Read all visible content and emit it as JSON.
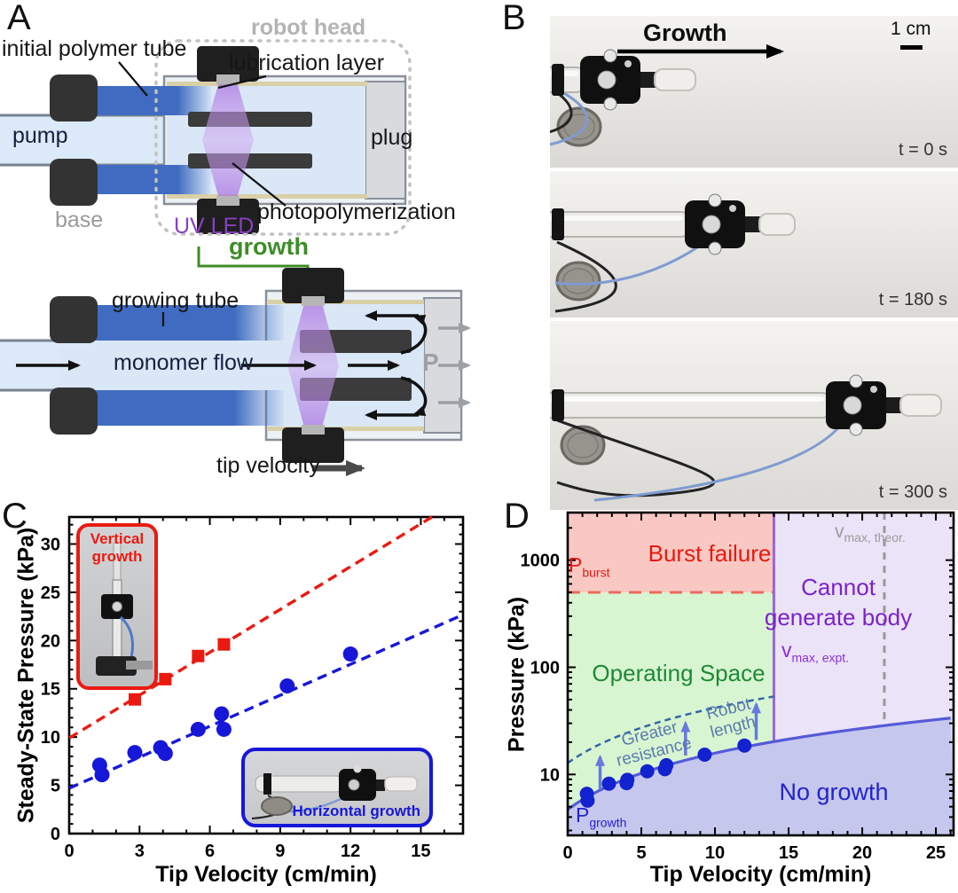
{
  "panels": {
    "a": "A",
    "b": "B",
    "c": "C",
    "d": "D"
  },
  "panel_a": {
    "labels": {
      "robot_head": "robot head",
      "initial_polymer_tube": "initial polymer tube",
      "lubrication_layer": "lubrication layer",
      "pump": "pump",
      "plug": "plug",
      "base": "base",
      "uv_led": "UV LED",
      "photopolymerization": "photopolymerization",
      "growth": "growth",
      "growing_tube": "growing tube",
      "monomer_flow": "monomer flow",
      "pressure": "P",
      "tip_velocity": "tip velocity"
    },
    "colors": {
      "tube_blue": "#3f6cc0",
      "monomer_blue": "#d9e7f7",
      "uv_purple": "#8b3fc2",
      "growth_green": "#3f8c28",
      "muted_gray": "#9aa0a6"
    }
  },
  "panel_b": {
    "growth_label": "Growth",
    "scale_label": "1 cm",
    "frames": [
      {
        "time": "t = 0 s"
      },
      {
        "time": "t = 180 s"
      },
      {
        "time": "t = 300 s"
      }
    ]
  },
  "chart_data": [
    {
      "id": "C",
      "type": "scatter",
      "xlabel": "Tip Velocity (cm/min)",
      "ylabel": "Steady-State Pressure (kPa)",
      "xlim": [
        0,
        16.8
      ],
      "ylim": [
        0,
        32.8
      ],
      "xticks": [
        0,
        3,
        6,
        9,
        12,
        15
      ],
      "yticks": [
        0,
        5,
        10,
        15,
        20,
        25,
        30
      ],
      "grid": false,
      "series": [
        {
          "name": "Vertical growth",
          "marker": "square",
          "color": "#ea1a10",
          "trend": {
            "style": "dashed",
            "intercept": 9.9,
            "slope": 1.48
          },
          "points": [
            [
              2.8,
              13.9
            ],
            [
              4.1,
              16.0
            ],
            [
              5.5,
              18.4
            ],
            [
              6.6,
              19.6
            ]
          ]
        },
        {
          "name": "Horizontal growth",
          "marker": "circle",
          "color": "#1717d9",
          "trend": {
            "style": "dashed",
            "intercept": 4.7,
            "slope": 1.07
          },
          "points": [
            [
              1.3,
              7.1
            ],
            [
              1.4,
              6.1
            ],
            [
              2.8,
              8.4
            ],
            [
              3.9,
              8.9
            ],
            [
              4.1,
              8.3
            ],
            [
              5.5,
              10.8
            ],
            [
              6.5,
              12.4
            ],
            [
              6.6,
              10.8
            ],
            [
              9.3,
              15.3
            ],
            [
              12.0,
              18.6
            ]
          ]
        }
      ],
      "insets": [
        {
          "label": "Vertical growth",
          "accent": "#ea1a10"
        },
        {
          "label": "Horizontal growth",
          "accent": "#1717d9"
        }
      ]
    },
    {
      "id": "D",
      "type": "phase-diagram",
      "scale_y": "log",
      "xlabel": "Tip Velocity (cm/min)",
      "ylabel": "Pressure (kPa)",
      "xlim": [
        0,
        26.2
      ],
      "ylim": [
        2.7,
        2780
      ],
      "xticks": [
        0,
        5,
        10,
        15,
        20,
        25
      ],
      "yticks": [
        10,
        100,
        1000
      ],
      "p_burst_kpa": 500,
      "v_max_expt_cm_min": 14,
      "v_max_theor_cm_min": 21.5,
      "p_growth_trend": {
        "intercept": 4.7,
        "slope": 1.11
      },
      "resistance_trend": {
        "intercept": 12.8,
        "slope": 2.9
      },
      "points": [
        [
          1.3,
          6.6
        ],
        [
          1.35,
          5.7
        ],
        [
          2.8,
          8.2
        ],
        [
          4.0,
          8.3
        ],
        [
          4.05,
          8.9
        ],
        [
          5.4,
          10.7
        ],
        [
          6.6,
          11.2
        ],
        [
          6.7,
          12.2
        ],
        [
          9.3,
          15.3
        ],
        [
          12.0,
          18.6
        ]
      ],
      "arrows": [
        {
          "x": 2.2,
          "from": 7.3,
          "to": 14.5
        },
        {
          "x": 8.0,
          "from": 15,
          "to": 30
        },
        {
          "x": 12.8,
          "from": 21,
          "to": 45
        }
      ],
      "regions": [
        {
          "name": "Burst failure",
          "fill": "#f9c8c3",
          "text_color": "#e8190f"
        },
        {
          "name": "Operating Space",
          "fill": "#d8f5d1",
          "text_color": "#1d8a35"
        },
        {
          "name": "Cannot generate body",
          "fill": "#ebe3f7",
          "text_color": "#7b22cc"
        },
        {
          "name": "No growth",
          "fill": "#c5c7ed",
          "text_color": "#2323cd"
        }
      ],
      "labels": {
        "p_burst": {
          "main": "P",
          "sub": "burst"
        },
        "p_growth": {
          "main": "P",
          "sub": "growth"
        },
        "v_max_theor": {
          "main": "v",
          "sub": "max, theor."
        },
        "v_max_expt": {
          "main": "v",
          "sub": "max, expt."
        },
        "greater_resistance": "Greater resistance",
        "robot_length": "Robot length"
      }
    }
  ]
}
